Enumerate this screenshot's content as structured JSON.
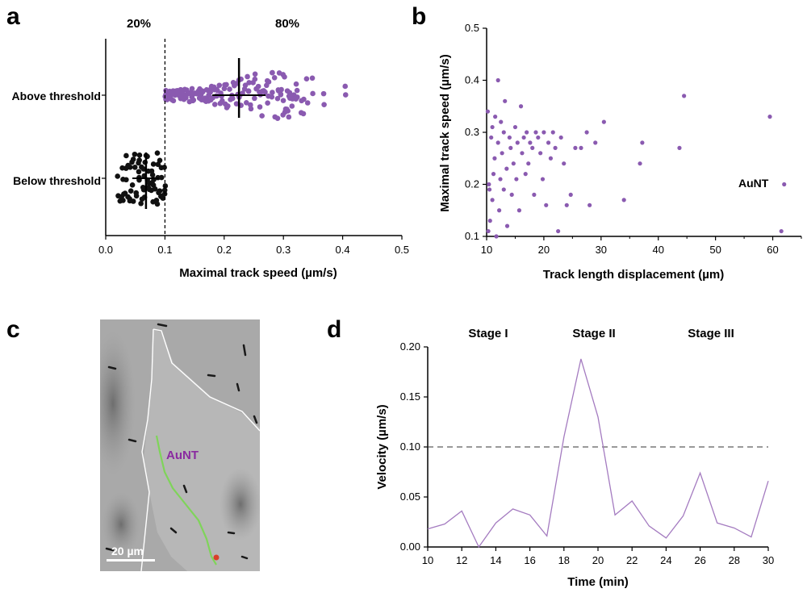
{
  "panels": {
    "a": "a",
    "b": "b",
    "c": "c",
    "d": "d"
  },
  "chart_data": [
    {
      "panel": "a",
      "type": "scatter",
      "xlabel": "Maximal track speed (µm/s)",
      "ylabel": "",
      "xlim": [
        0,
        0.5
      ],
      "xticks": [
        "0.0",
        "0.1",
        "0.2",
        "0.3",
        "0.4",
        "0.5"
      ],
      "threshold": 0.1,
      "annotations": [
        "20%",
        "80%"
      ],
      "categories": [
        "Above threshold",
        "Below threshold"
      ],
      "groups": [
        {
          "category": "Above threshold",
          "color": "#8a5ab0",
          "mean": 0.225,
          "sd_range": [
            0.18,
            0.27
          ],
          "n": 200,
          "x_range": [
            0.1,
            0.405
          ],
          "values": [
            0.1,
            0.102,
            0.105,
            0.108,
            0.11,
            0.112,
            0.115,
            0.118,
            0.12,
            0.122,
            0.125,
            0.128,
            0.13,
            0.132,
            0.135,
            0.138,
            0.14,
            0.142,
            0.145,
            0.148,
            0.15,
            0.152,
            0.155,
            0.158,
            0.16,
            0.162,
            0.165,
            0.168,
            0.17,
            0.172,
            0.175,
            0.178,
            0.18,
            0.182,
            0.185,
            0.188,
            0.19,
            0.193,
            0.196,
            0.2,
            0.203,
            0.206,
            0.21,
            0.213,
            0.216,
            0.22,
            0.223,
            0.226,
            0.23,
            0.233,
            0.236,
            0.24,
            0.243,
            0.246,
            0.25,
            0.253,
            0.256,
            0.26,
            0.263,
            0.266,
            0.27,
            0.273,
            0.276,
            0.28,
            0.283,
            0.286,
            0.29,
            0.292,
            0.294,
            0.296,
            0.298,
            0.3,
            0.302,
            0.305,
            0.308,
            0.31,
            0.313,
            0.316,
            0.32,
            0.325,
            0.33,
            0.335,
            0.34,
            0.35,
            0.368,
            0.405
          ]
        },
        {
          "category": "Below threshold",
          "color": "#111111",
          "mean": 0.068,
          "sd_range": [
            0.045,
            0.09
          ],
          "n": 50,
          "x_range": [
            0.02,
            0.1
          ],
          "values": [
            0.02,
            0.025,
            0.028,
            0.03,
            0.033,
            0.036,
            0.038,
            0.04,
            0.042,
            0.045,
            0.047,
            0.05,
            0.052,
            0.054,
            0.056,
            0.058,
            0.06,
            0.062,
            0.064,
            0.066,
            0.068,
            0.07,
            0.072,
            0.074,
            0.076,
            0.078,
            0.08,
            0.082,
            0.084,
            0.086,
            0.088,
            0.09,
            0.092,
            0.094,
            0.096,
            0.098,
            0.1
          ]
        }
      ]
    },
    {
      "panel": "b",
      "type": "scatter",
      "xlabel": "Track length displacement (µm)",
      "ylabel": "Maximal track speed (µm/s)",
      "xlim": [
        10,
        65
      ],
      "ylim": [
        0.1,
        0.5
      ],
      "xticks": [
        "10",
        "20",
        "30",
        "40",
        "50",
        "60"
      ],
      "yticks": [
        "0.1",
        "0.2",
        "0.3",
        "0.4",
        "0.5"
      ],
      "series": [
        {
          "name": "AuNT",
          "color": "#8a5ab0",
          "points": [
            [
              10.2,
              0.34
            ],
            [
              10.3,
              0.11
            ],
            [
              10.4,
              0.2
            ],
            [
              10.5,
              0.19
            ],
            [
              10.6,
              0.13
            ],
            [
              10.8,
              0.29
            ],
            [
              11,
              0.31
            ],
            [
              11,
              0.17
            ],
            [
              11.2,
              0.22
            ],
            [
              11.4,
              0.25
            ],
            [
              11.5,
              0.33
            ],
            [
              11.7,
              0.1
            ],
            [
              12,
              0.4
            ],
            [
              12,
              0.28
            ],
            [
              12.2,
              0.15
            ],
            [
              12.4,
              0.21
            ],
            [
              12.5,
              0.32
            ],
            [
              12.7,
              0.26
            ],
            [
              13,
              0.3
            ],
            [
              13,
              0.19
            ],
            [
              13.2,
              0.36
            ],
            [
              13.5,
              0.23
            ],
            [
              13.6,
              0.12
            ],
            [
              14,
              0.29
            ],
            [
              14.2,
              0.27
            ],
            [
              14.4,
              0.18
            ],
            [
              14.7,
              0.24
            ],
            [
              15,
              0.31
            ],
            [
              15.2,
              0.21
            ],
            [
              15.4,
              0.28
            ],
            [
              15.7,
              0.15
            ],
            [
              16,
              0.35
            ],
            [
              16.2,
              0.26
            ],
            [
              16.5,
              0.29
            ],
            [
              16.8,
              0.22
            ],
            [
              17,
              0.3
            ],
            [
              17.3,
              0.24
            ],
            [
              17.6,
              0.28
            ],
            [
              18,
              0.27
            ],
            [
              18.3,
              0.18
            ],
            [
              18.6,
              0.3
            ],
            [
              19,
              0.29
            ],
            [
              19.4,
              0.26
            ],
            [
              19.8,
              0.21
            ],
            [
              20,
              0.3
            ],
            [
              20.4,
              0.16
            ],
            [
              20.8,
              0.28
            ],
            [
              21.2,
              0.25
            ],
            [
              21.6,
              0.3
            ],
            [
              22,
              0.27
            ],
            [
              22.5,
              0.11
            ],
            [
              23,
              0.29
            ],
            [
              23.5,
              0.24
            ],
            [
              24,
              0.16
            ],
            [
              24.7,
              0.18
            ],
            [
              25.5,
              0.27
            ],
            [
              26.5,
              0.27
            ],
            [
              27.5,
              0.3
            ],
            [
              28,
              0.16
            ],
            [
              29,
              0.28
            ],
            [
              30.5,
              0.32
            ],
            [
              34,
              0.17
            ],
            [
              36.8,
              0.24
            ],
            [
              37.2,
              0.28
            ],
            [
              43.7,
              0.27
            ],
            [
              44.5,
              0.37
            ],
            [
              59.5,
              0.33
            ],
            [
              61.5,
              0.11
            ],
            [
              62,
              0.2
            ]
          ]
        }
      ],
      "annotations": [
        "AuNT"
      ]
    },
    {
      "panel": "d",
      "type": "line",
      "xlabel": "Time (min)",
      "ylabel": "Velocity (µm/s)",
      "xlim": [
        10,
        30
      ],
      "ylim": [
        0,
        0.2
      ],
      "xticks": [
        "10",
        "12",
        "14",
        "16",
        "18",
        "20",
        "22",
        "24",
        "26",
        "28",
        "30"
      ],
      "yticks": [
        "0.00",
        "0.05",
        "0.10",
        "0.15",
        "0.20"
      ],
      "threshold": 0.1,
      "stages": [
        "Stage I",
        "Stage II",
        "Stage III"
      ],
      "x": [
        10,
        11,
        12,
        13,
        14,
        15,
        16,
        17,
        18,
        19,
        20,
        21,
        22,
        23,
        24,
        25,
        26,
        27,
        28,
        29,
        30
      ],
      "series": [
        {
          "color": "#a47bc0",
          "values": [
            0.018,
            0.023,
            0.036,
            0.0,
            0.024,
            0.038,
            0.032,
            0.011,
            0.11,
            0.188,
            0.13,
            0.032,
            0.046,
            0.021,
            0.009,
            0.031,
            0.074,
            0.024,
            0.019,
            0.01,
            0.066
          ]
        }
      ]
    }
  ],
  "micrograph": {
    "panel": "c",
    "label": "AuNT",
    "scalebar_label": "20 µm"
  }
}
